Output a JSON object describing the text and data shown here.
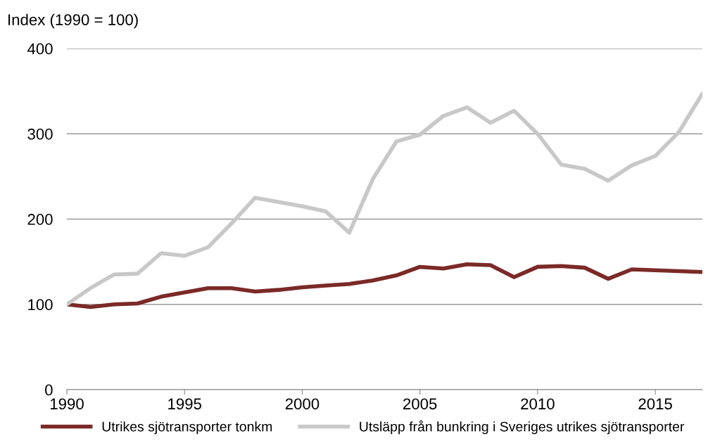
{
  "chart_data": {
    "type": "line",
    "ylabel": "Index (1990 = 100)",
    "x": [
      1990,
      1991,
      1992,
      1993,
      1994,
      1995,
      1996,
      1997,
      1998,
      1999,
      2000,
      2001,
      2002,
      2003,
      2004,
      2005,
      2006,
      2007,
      2008,
      2009,
      2010,
      2011,
      2012,
      2013,
      2014,
      2015,
      2016,
      2017
    ],
    "series": [
      {
        "name": "Utrikes sjötransporter tonkm",
        "color": "#7b2a27",
        "values": [
          100,
          97,
          100,
          101,
          109,
          114,
          119,
          119,
          115,
          117,
          120,
          122,
          124,
          128,
          134,
          144,
          142,
          147,
          146,
          132,
          144,
          145,
          143,
          130,
          141,
          140,
          139,
          138
        ]
      },
      {
        "name": "Utsläpp från bunkring i Sveriges utrikes sjötransporter",
        "color": "#c8c8c8",
        "values": [
          100,
          119,
          135,
          136,
          160,
          157,
          167,
          195,
          225,
          220,
          215,
          209,
          184,
          247,
          291,
          299,
          321,
          331,
          313,
          327,
          300,
          264,
          259,
          245,
          263,
          274,
          302,
          347
        ]
      }
    ],
    "xlim": [
      1990,
      2017
    ],
    "xticks": [
      1990,
      1995,
      2000,
      2005,
      2010,
      2015
    ],
    "ylim": [
      0,
      400
    ],
    "yticks": [
      0,
      100,
      200,
      300,
      400
    ],
    "grid": "y",
    "legend": "bottom",
    "marker": "none",
    "line_style": "solid"
  }
}
